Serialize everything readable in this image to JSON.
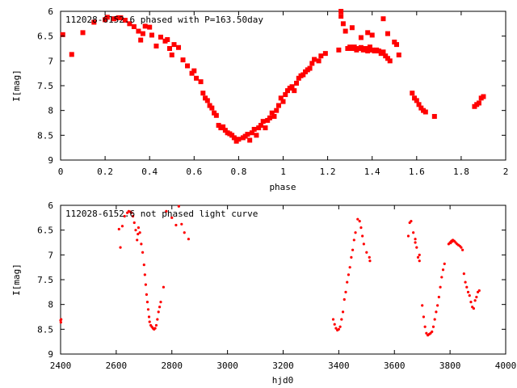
{
  "colors": {
    "points": "#ff0000",
    "axes": "#000000",
    "background": "#ffffff"
  },
  "chart_data": [
    {
      "type": "scatter",
      "title": "112028-6152.6 phased with P=163.50day",
      "xlabel": "phase",
      "ylabel": "I[mag]",
      "xlim": [
        0,
        2
      ],
      "ylim": [
        9,
        6
      ],
      "y_inverted": true,
      "x_ticks": [
        0,
        0.2,
        0.4,
        0.6,
        0.8,
        1,
        1.2,
        1.4,
        1.6,
        1.8,
        2
      ],
      "x_tick_labels": [
        "0",
        "0.2",
        "0.4",
        "0.6",
        "0.8",
        "1",
        "1.2",
        "1.4",
        "1.6",
        "1.8",
        "2"
      ],
      "y_ticks": [
        6,
        6.5,
        7,
        7.5,
        8,
        8.5,
        9
      ],
      "y_tick_labels": [
        "6",
        "6.5",
        "7",
        "7.5",
        "8",
        "8.5",
        "9"
      ],
      "grid": false,
      "marker": "filled-cross",
      "series": [
        {
          "points": [
            [
              0.01,
              6.47
            ],
            [
              0.05,
              6.87
            ],
            [
              0.1,
              6.43
            ],
            [
              0.15,
              6.22
            ],
            [
              0.2,
              6.17
            ],
            [
              0.21,
              6.12
            ],
            [
              0.24,
              6.15
            ],
            [
              0.26,
              6.13
            ],
            [
              0.27,
              6.13
            ],
            [
              0.29,
              6.18
            ],
            [
              0.31,
              6.25
            ],
            [
              0.33,
              6.31
            ],
            [
              0.35,
              6.4
            ],
            [
              0.36,
              6.58
            ],
            [
              0.37,
              6.45
            ],
            [
              0.38,
              6.3
            ],
            [
              0.4,
              6.32
            ],
            [
              0.41,
              6.48
            ],
            [
              0.43,
              6.7
            ],
            [
              0.45,
              6.52
            ],
            [
              0.47,
              6.6
            ],
            [
              0.48,
              6.57
            ],
            [
              0.49,
              6.75
            ],
            [
              0.5,
              6.88
            ],
            [
              0.51,
              6.67
            ],
            [
              0.53,
              6.73
            ],
            [
              0.55,
              6.98
            ],
            [
              0.57,
              7.1
            ],
            [
              0.59,
              7.25
            ],
            [
              0.6,
              7.2
            ],
            [
              0.61,
              7.35
            ],
            [
              0.63,
              7.42
            ],
            [
              0.64,
              7.65
            ],
            [
              0.65,
              7.75
            ],
            [
              0.66,
              7.8
            ],
            [
              0.67,
              7.9
            ],
            [
              0.68,
              7.95
            ],
            [
              0.69,
              8.05
            ],
            [
              0.7,
              8.1
            ],
            [
              0.71,
              8.3
            ],
            [
              0.72,
              8.35
            ],
            [
              0.73,
              8.33
            ],
            [
              0.74,
              8.4
            ],
            [
              0.75,
              8.45
            ],
            [
              0.76,
              8.47
            ],
            [
              0.77,
              8.5
            ],
            [
              0.78,
              8.55
            ],
            [
              0.79,
              8.62
            ],
            [
              0.8,
              8.58
            ],
            [
              0.82,
              8.55
            ],
            [
              0.83,
              8.52
            ],
            [
              0.84,
              8.48
            ],
            [
              0.85,
              8.6
            ],
            [
              0.86,
              8.45
            ],
            [
              0.87,
              8.38
            ],
            [
              0.88,
              8.5
            ],
            [
              0.89,
              8.35
            ],
            [
              0.9,
              8.3
            ],
            [
              0.91,
              8.22
            ],
            [
              0.92,
              8.35
            ],
            [
              0.93,
              8.2
            ],
            [
              0.94,
              8.15
            ],
            [
              0.95,
              8.05
            ],
            [
              0.96,
              8.12
            ],
            [
              0.97,
              8.0
            ],
            [
              0.98,
              7.9
            ],
            [
              0.99,
              7.75
            ],
            [
              1.0,
              7.82
            ],
            [
              1.01,
              7.68
            ],
            [
              1.02,
              7.6
            ],
            [
              1.03,
              7.55
            ],
            [
              1.04,
              7.52
            ],
            [
              1.05,
              7.6
            ],
            [
              1.06,
              7.45
            ],
            [
              1.07,
              7.35
            ],
            [
              1.08,
              7.3
            ],
            [
              1.09,
              7.28
            ],
            [
              1.1,
              7.22
            ],
            [
              1.11,
              7.18
            ],
            [
              1.12,
              7.15
            ],
            [
              1.13,
              7.05
            ],
            [
              1.14,
              6.97
            ],
            [
              1.16,
              7.0
            ],
            [
              1.17,
              6.9
            ],
            [
              1.19,
              6.85
            ],
            [
              1.25,
              6.78
            ],
            [
              1.26,
              6.1
            ],
            [
              1.27,
              6.25
            ],
            [
              1.28,
              6.4
            ],
            [
              1.29,
              6.75
            ],
            [
              1.3,
              6.72
            ],
            [
              1.31,
              6.75
            ],
            [
              1.32,
              6.72
            ],
            [
              1.33,
              6.78
            ],
            [
              1.34,
              6.75
            ],
            [
              1.35,
              6.73
            ],
            [
              1.36,
              6.78
            ],
            [
              1.37,
              6.75
            ],
            [
              1.38,
              6.8
            ],
            [
              1.39,
              6.72
            ],
            [
              1.4,
              6.78
            ],
            [
              1.41,
              6.8
            ],
            [
              1.42,
              6.78
            ],
            [
              1.43,
              6.8
            ],
            [
              1.44,
              6.85
            ],
            [
              1.45,
              6.82
            ],
            [
              1.46,
              6.9
            ],
            [
              1.47,
              6.95
            ],
            [
              1.48,
              7.0
            ],
            [
              1.5,
              6.62
            ],
            [
              1.51,
              6.67
            ],
            [
              1.52,
              6.88
            ],
            [
              1.58,
              7.65
            ],
            [
              1.59,
              7.75
            ],
            [
              1.6,
              7.8
            ],
            [
              1.61,
              7.88
            ],
            [
              1.62,
              7.95
            ],
            [
              1.63,
              8.0
            ],
            [
              1.64,
              8.03
            ],
            [
              1.68,
              8.12
            ],
            [
              1.86,
              7.92
            ],
            [
              1.87,
              7.88
            ],
            [
              1.88,
              7.85
            ],
            [
              1.89,
              7.75
            ],
            [
              1.9,
              7.72
            ],
            [
              1.26,
              6.0
            ],
            [
              1.31,
              6.33
            ],
            [
              1.35,
              6.53
            ],
            [
              1.38,
              6.43
            ],
            [
              1.4,
              6.48
            ],
            [
              1.45,
              6.15
            ],
            [
              1.47,
              6.45
            ]
          ]
        }
      ]
    },
    {
      "type": "scatter",
      "title": "112028-6152.6 not phased light curve",
      "xlabel": "hjd0",
      "ylabel": "I[mag]",
      "xlim": [
        2400,
        4000
      ],
      "ylim": [
        9,
        6
      ],
      "y_inverted": true,
      "x_ticks": [
        2400,
        2600,
        2800,
        3000,
        3200,
        3400,
        3600,
        3800,
        4000
      ],
      "x_tick_labels": [
        "2400",
        "2600",
        "2800",
        "3000",
        "3200",
        "3400",
        "3600",
        "3800",
        "4000"
      ],
      "y_ticks": [
        6,
        6.5,
        7,
        7.5,
        8,
        8.5,
        9
      ],
      "y_tick_labels": [
        "6",
        "6.5",
        "7",
        "7.5",
        "8",
        "8.5",
        "9"
      ],
      "grid": false,
      "marker": "small-dot",
      "series": [
        {
          "points": [
            [
              2400,
              8.32
            ],
            [
              2401,
              8.36
            ],
            [
              2402,
              8.3
            ],
            [
              2610,
              6.48
            ],
            [
              2615,
              6.85
            ],
            [
              2622,
              6.42
            ],
            [
              2630,
              6.22
            ],
            [
              2640,
              6.15
            ],
            [
              2645,
              6.12
            ],
            [
              2650,
              6.13
            ],
            [
              2655,
              6.15
            ],
            [
              2660,
              6.22
            ],
            [
              2665,
              6.35
            ],
            [
              2670,
              6.5
            ],
            [
              2675,
              6.7
            ],
            [
              2678,
              6.58
            ],
            [
              2680,
              6.45
            ],
            [
              2685,
              6.55
            ],
            [
              2690,
              6.78
            ],
            [
              2695,
              6.95
            ],
            [
              2700,
              7.2
            ],
            [
              2703,
              7.4
            ],
            [
              2706,
              7.6
            ],
            [
              2709,
              7.8
            ],
            [
              2712,
              7.95
            ],
            [
              2715,
              8.1
            ],
            [
              2718,
              8.25
            ],
            [
              2720,
              8.35
            ],
            [
              2724,
              8.42
            ],
            [
              2728,
              8.45
            ],
            [
              2732,
              8.48
            ],
            [
              2736,
              8.5
            ],
            [
              2740,
              8.48
            ],
            [
              2744,
              8.42
            ],
            [
              2748,
              8.3
            ],
            [
              2752,
              8.15
            ],
            [
              2756,
              8.05
            ],
            [
              2760,
              7.95
            ],
            [
              2770,
              7.65
            ],
            [
              2780,
              6.12
            ],
            [
              2800,
              6.25
            ],
            [
              2815,
              6.4
            ],
            [
              2825,
              6.02
            ],
            [
              2835,
              6.38
            ],
            [
              2845,
              6.55
            ],
            [
              2860,
              6.68
            ],
            [
              3380,
              8.3
            ],
            [
              3385,
              8.4
            ],
            [
              3390,
              8.48
            ],
            [
              3395,
              8.52
            ],
            [
              3400,
              8.5
            ],
            [
              3405,
              8.45
            ],
            [
              3410,
              8.3
            ],
            [
              3415,
              8.15
            ],
            [
              3420,
              7.9
            ],
            [
              3425,
              7.75
            ],
            [
              3430,
              7.55
            ],
            [
              3435,
              7.4
            ],
            [
              3440,
              7.25
            ],
            [
              3445,
              7.05
            ],
            [
              3450,
              6.9
            ],
            [
              3455,
              6.7
            ],
            [
              3460,
              6.55
            ],
            [
              3468,
              6.28
            ],
            [
              3475,
              6.32
            ],
            [
              3480,
              6.45
            ],
            [
              3485,
              6.62
            ],
            [
              3490,
              6.78
            ],
            [
              3500,
              6.95
            ],
            [
              3510,
              7.05
            ],
            [
              3512,
              7.12
            ],
            [
              3650,
              6.62
            ],
            [
              3655,
              6.35
            ],
            [
              3660,
              6.32
            ],
            [
              3668,
              6.55
            ],
            [
              3675,
              6.75
            ],
            [
              3680,
              6.85
            ],
            [
              3685,
              7.05
            ],
            [
              3690,
              7.12
            ],
            [
              3700,
              8.02
            ],
            [
              3705,
              8.25
            ],
            [
              3710,
              8.45
            ],
            [
              3715,
              8.58
            ],
            [
              3720,
              8.62
            ],
            [
              3725,
              8.6
            ],
            [
              3730,
              8.58
            ],
            [
              3735,
              8.55
            ],
            [
              3740,
              8.45
            ],
            [
              3745,
              8.3
            ],
            [
              3750,
              8.15
            ],
            [
              3755,
              8.02
            ],
            [
              3760,
              7.85
            ],
            [
              3765,
              7.65
            ],
            [
              3770,
              7.45
            ],
            [
              3775,
              7.3
            ],
            [
              3780,
              7.18
            ],
            [
              3795,
              6.78
            ],
            [
              3800,
              6.75
            ],
            [
              3805,
              6.72
            ],
            [
              3810,
              6.7
            ],
            [
              3815,
              6.72
            ],
            [
              3820,
              6.75
            ],
            [
              3825,
              6.78
            ],
            [
              3830,
              6.8
            ],
            [
              3835,
              6.82
            ],
            [
              3840,
              6.85
            ],
            [
              3845,
              6.9
            ],
            [
              3850,
              7.38
            ],
            [
              3855,
              7.55
            ],
            [
              3860,
              7.65
            ],
            [
              3865,
              7.75
            ],
            [
              3870,
              7.82
            ],
            [
              3875,
              7.95
            ],
            [
              3880,
              8.05
            ],
            [
              3885,
              8.08
            ],
            [
              3890,
              7.92
            ],
            [
              3895,
              7.85
            ],
            [
              3900,
              7.75
            ],
            [
              3905,
              7.72
            ],
            [
              3675,
              6.68
            ],
            [
              3690,
              7.0
            ],
            [
              3802,
              6.76
            ],
            [
              3808,
              6.73
            ]
          ]
        }
      ]
    }
  ]
}
